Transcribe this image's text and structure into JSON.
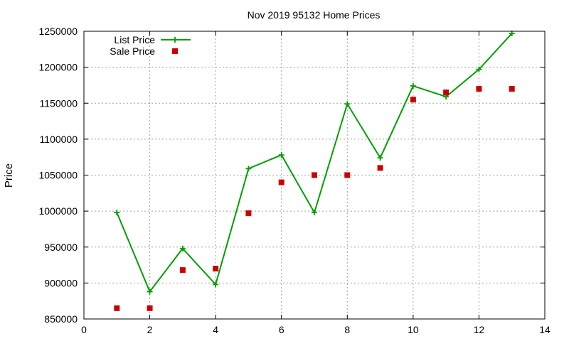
{
  "chart_data": {
    "type": "line",
    "title": "Nov 2019 95132 Home Prices",
    "xlabel": "",
    "ylabel": "Price",
    "xlim": [
      0,
      14
    ],
    "ylim": [
      850000,
      1250000
    ],
    "x_ticks": [
      0,
      2,
      4,
      6,
      8,
      10,
      12,
      14
    ],
    "y_ticks": [
      850000,
      900000,
      950000,
      1000000,
      1050000,
      1100000,
      1150000,
      1200000,
      1250000
    ],
    "grid": true,
    "legend_position": "top-left",
    "series": [
      {
        "name": "List Price",
        "style": "line-with-plus-markers",
        "color": "#00a000",
        "x": [
          1,
          2,
          3,
          4,
          5,
          6,
          7,
          8,
          9,
          10,
          11,
          12,
          13
        ],
        "y": [
          998000,
          888000,
          948000,
          898000,
          1059000,
          1078000,
          998000,
          1149000,
          1074000,
          1174000,
          1159000,
          1197000,
          1247000
        ]
      },
      {
        "name": "Sale Price",
        "style": "square-markers",
        "color": "#cc0000",
        "x": [
          1,
          2,
          3,
          4,
          5,
          6,
          7,
          8,
          9,
          10,
          11,
          12,
          13
        ],
        "y": [
          865000,
          865000,
          918000,
          920000,
          997000,
          1040000,
          1050000,
          1050000,
          1060000,
          1155000,
          1165000,
          1170000,
          1170000
        ]
      }
    ]
  }
}
